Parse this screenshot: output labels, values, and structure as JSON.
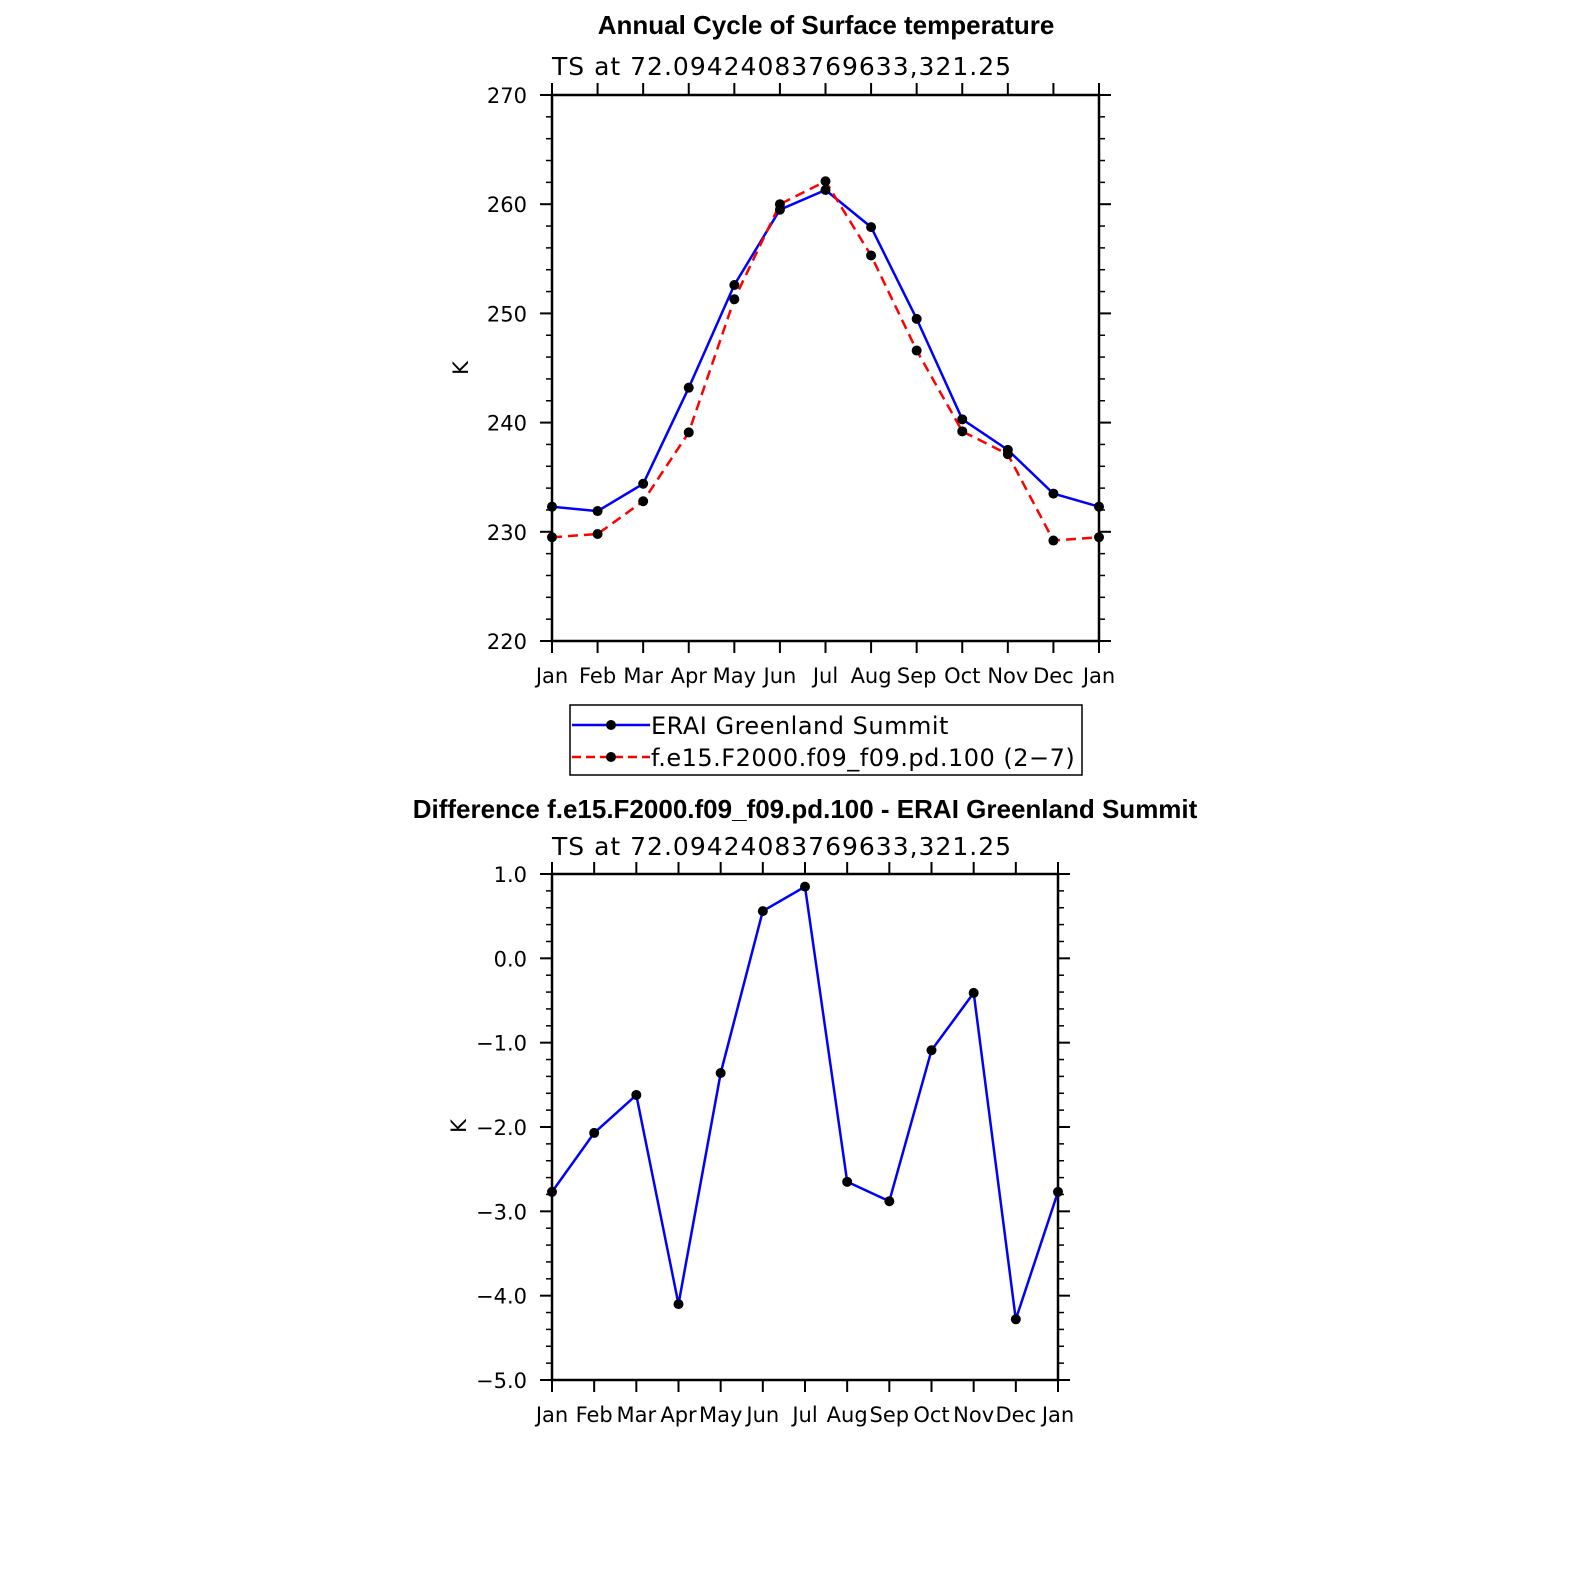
{
  "chart_data": [
    {
      "type": "line",
      "title": "Annual Cycle of Surface temperature",
      "subtitle": "TS at 72.09424083769633,321.25",
      "xlabel": "",
      "ylabel": "K",
      "categories": [
        "Jan",
        "Feb",
        "Mar",
        "Apr",
        "May",
        "Jun",
        "Jul",
        "Aug",
        "Sep",
        "Oct",
        "Nov",
        "Dec",
        "Jan"
      ],
      "ylim": [
        220,
        270
      ],
      "yticks": [
        220,
        230,
        240,
        250,
        260,
        270
      ],
      "ytick_labels": [
        "220",
        "230",
        "240",
        "250",
        "260",
        "270"
      ],
      "legend_position": "bottom",
      "series": [
        {
          "name": "ERAI Greenland Summit",
          "color": "#0000ff",
          "style": "solid",
          "values": [
            232.3,
            231.9,
            234.4,
            243.2,
            252.6,
            259.5,
            261.3,
            257.9,
            249.5,
            240.3,
            237.5,
            233.5,
            232.3
          ]
        },
        {
          "name": "f.e15.F2000.f09_f09.pd.100 (2−7)",
          "color": "#ff0000",
          "style": "dashed",
          "values": [
            229.5,
            229.8,
            232.8,
            239.1,
            251.3,
            260.0,
            262.1,
            255.3,
            246.6,
            239.2,
            237.1,
            229.2,
            229.5
          ]
        }
      ]
    },
    {
      "type": "line",
      "title": "Difference f.e15.F2000.f09_f09.pd.100 - ERAI Greenland Summit",
      "subtitle": "TS at 72.09424083769633,321.25",
      "xlabel": "",
      "ylabel": "K",
      "categories": [
        "Jan",
        "Feb",
        "Mar",
        "Apr",
        "May",
        "Jun",
        "Jul",
        "Aug",
        "Sep",
        "Oct",
        "Nov",
        "Dec",
        "Jan"
      ],
      "ylim": [
        -5.0,
        1.0
      ],
      "yticks": [
        -5.0,
        -4.0,
        -3.0,
        -2.0,
        -1.0,
        0.0,
        1.0
      ],
      "ytick_labels": [
        "−5.0",
        "−4.0",
        "−3.0",
        "−2.0",
        "−1.0",
        "0.0",
        "1.0"
      ],
      "series": [
        {
          "name": "",
          "color": "#0000ff",
          "style": "solid",
          "values": [
            -2.77,
            -2.07,
            -1.62,
            -4.1,
            -1.36,
            0.56,
            0.85,
            -2.65,
            -2.88,
            -1.09,
            -0.41,
            -4.28,
            -2.77
          ]
        }
      ]
    }
  ]
}
